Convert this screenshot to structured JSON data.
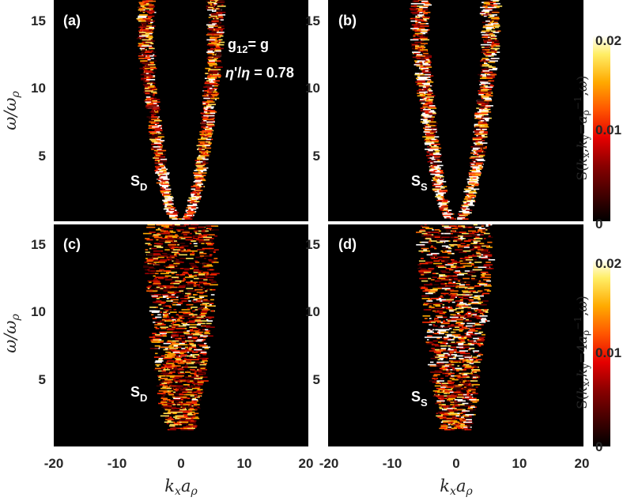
{
  "chart_data": {
    "type": "heatmap",
    "xlabel": "kₓa_ρ",
    "ylabel": "ω/ω_ρ",
    "xlim": [
      -20,
      20
    ],
    "ylim": [
      0,
      16
    ],
    "xticks": [
      "-20",
      "-10",
      "0",
      "10",
      "20"
    ],
    "yticks": [
      "5",
      "10",
      "15"
    ],
    "colormap": "hot",
    "panels": [
      {
        "label": "(a)",
        "annotation": "S",
        "annotation_sub": "D",
        "ky": "a_ρ^{-1}",
        "center_k": 0,
        "dispersion_k0": 4.2,
        "dispersion_curv": 0.55,
        "spread": 1.4,
        "strength": 1.0,
        "text_lines": [
          "g₁₂= g",
          "η'/η = 0.78"
        ]
      },
      {
        "label": "(b)",
        "annotation": "S",
        "annotation_sub": "S",
        "ky": "a_ρ^{-1}",
        "center_k": 0,
        "dispersion_k0": 4.5,
        "dispersion_curv": 0.55,
        "spread": 1.6,
        "strength": 1.2
      },
      {
        "label": "(c)",
        "annotation": "S",
        "annotation_sub": "D",
        "ky": "4a_ρ^{-1}",
        "center_k": 0,
        "dispersion_k0": 3.5,
        "dispersion_curv": 0.45,
        "spread": 3.0,
        "strength": 0.9
      },
      {
        "label": "(d)",
        "annotation": "S",
        "annotation_sub": "S",
        "ky": "4a_ρ^{-1}",
        "center_k": 0,
        "dispersion_k0": 3.8,
        "dispersion_curv": 0.45,
        "spread": 3.2,
        "strength": 1.0
      }
    ],
    "colorbars": [
      {
        "label": "S(kₓ,k_y=a_ρ^{-1},ω)",
        "ticks": [
          "0",
          "0.01",
          "0.02"
        ],
        "range": [
          0,
          0.02
        ]
      },
      {
        "label": "S(kₓ,k_y=4a_ρ^{-1},ω)",
        "ticks": [
          "0",
          "0.01",
          "0.02"
        ],
        "range": [
          0,
          0.02
        ]
      }
    ]
  }
}
